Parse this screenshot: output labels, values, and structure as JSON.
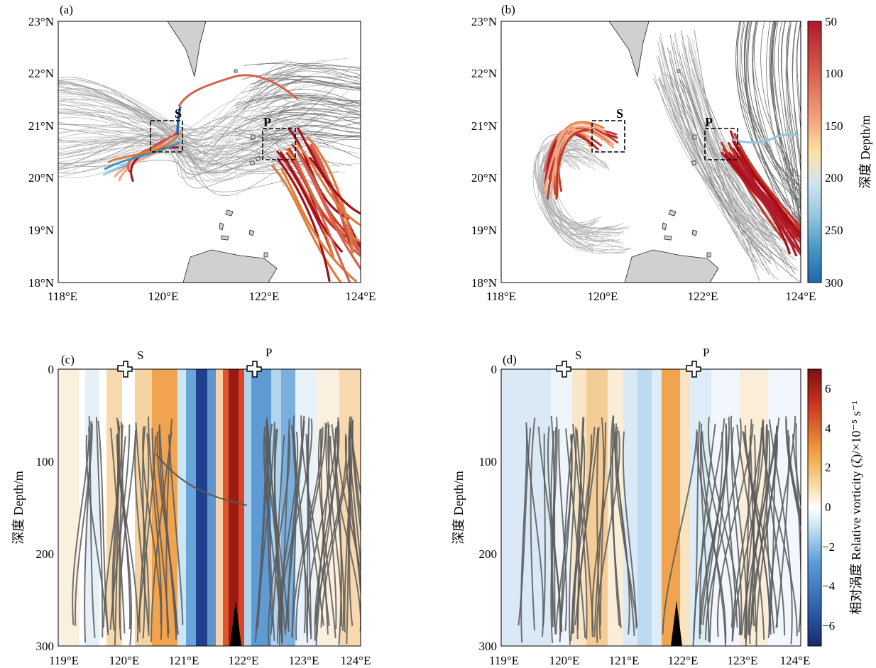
{
  "chart_data": [
    {
      "type": "trajectory_map",
      "panel_label": "(a)",
      "x_ticks": [
        "118°E",
        "120°E",
        "122°E",
        "124°E"
      ],
      "y_ticks": [
        "18°N",
        "19°N",
        "20°N",
        "21°N",
        "22°N",
        "23°N"
      ],
      "xlim": [
        118,
        124
      ],
      "ylim": [
        18,
        23
      ],
      "boxes": [
        {
          "label": "S",
          "lon": [
            119.8,
            120.4
          ],
          "lat": [
            20.5,
            21.1
          ]
        },
        {
          "label": "P",
          "lon": [
            122.0,
            122.6
          ],
          "lat": [
            20.35,
            20.95
          ]
        }
      ],
      "trajectory_colour_by": "depth"
    },
    {
      "type": "trajectory_map",
      "panel_label": "(b)",
      "x_ticks": [
        "118°E",
        "120°E",
        "122°E",
        "124°E"
      ],
      "y_ticks": [
        "18°N",
        "19°N",
        "20°N",
        "21°N",
        "22°N",
        "23°N"
      ],
      "xlim": [
        118,
        124
      ],
      "ylim": [
        18,
        23
      ],
      "boxes": [
        {
          "label": "S",
          "lon": [
            119.8,
            120.4
          ],
          "lat": [
            20.5,
            21.1
          ]
        },
        {
          "label": "P",
          "lon": [
            122.0,
            122.6
          ],
          "lat": [
            20.35,
            20.95
          ]
        }
      ],
      "trajectory_colour_by": "depth"
    },
    {
      "type": "heatmap",
      "panel_label": "(c)",
      "x_ticks": [
        "119°E",
        "120°E",
        "121°E",
        "122°E",
        "123°E",
        "124°E"
      ],
      "y_ticks": [
        "0",
        "100",
        "200",
        "300"
      ],
      "xlim": [
        119,
        124
      ],
      "ylim": [
        0,
        300
      ],
      "ylabel": "深度 Depth/m",
      "markers": [
        {
          "label": "S",
          "lon": 120.1
        },
        {
          "label": "P",
          "lon": 122.2
        }
      ],
      "ridge_lon": 121.9
    },
    {
      "type": "heatmap",
      "panel_label": "(d)",
      "x_ticks": [
        "119°E",
        "120°E",
        "121°E",
        "122°E",
        "123°E",
        "124°E"
      ],
      "y_ticks": [
        "0",
        "100",
        "200",
        "300"
      ],
      "xlim": [
        119,
        124
      ],
      "ylim": [
        0,
        300
      ],
      "ylabel": "深度 Depth/m",
      "markers": [
        {
          "label": "S",
          "lon": 120.0
        },
        {
          "label": "P",
          "lon": 122.1
        }
      ],
      "ridge_lon": 121.9
    }
  ],
  "colorbars": {
    "depth": {
      "label": "深度 Depth/m",
      "ticks": [
        "50",
        "100",
        "150",
        "200",
        "250",
        "300"
      ],
      "range": [
        50,
        300
      ],
      "colors": [
        "#b2182b",
        "#d6604d",
        "#f4a582",
        "#fddbc7",
        "#d1e5f0",
        "#92c5de",
        "#4393c3",
        "#2166ac"
      ]
    },
    "vorticity": {
      "label": "相对涡度 Relative vorticity (ζ)/×10⁻⁵ s⁻¹",
      "ticks": [
        "6",
        "4",
        "2",
        "0",
        "−2",
        "−4",
        "−6"
      ],
      "range": [
        -7,
        7
      ],
      "colors": [
        "#1a2a6c",
        "#2b5aa8",
        "#5a9bd5",
        "#a8d0ec",
        "#ffffff",
        "#f8d9a0",
        "#f0a040",
        "#d9452b",
        "#7a1010"
      ]
    }
  },
  "colors": {
    "land": "#d0d0d0",
    "trajectory_gray": "#595959",
    "faint_trajectory": "#b4b4b4"
  }
}
